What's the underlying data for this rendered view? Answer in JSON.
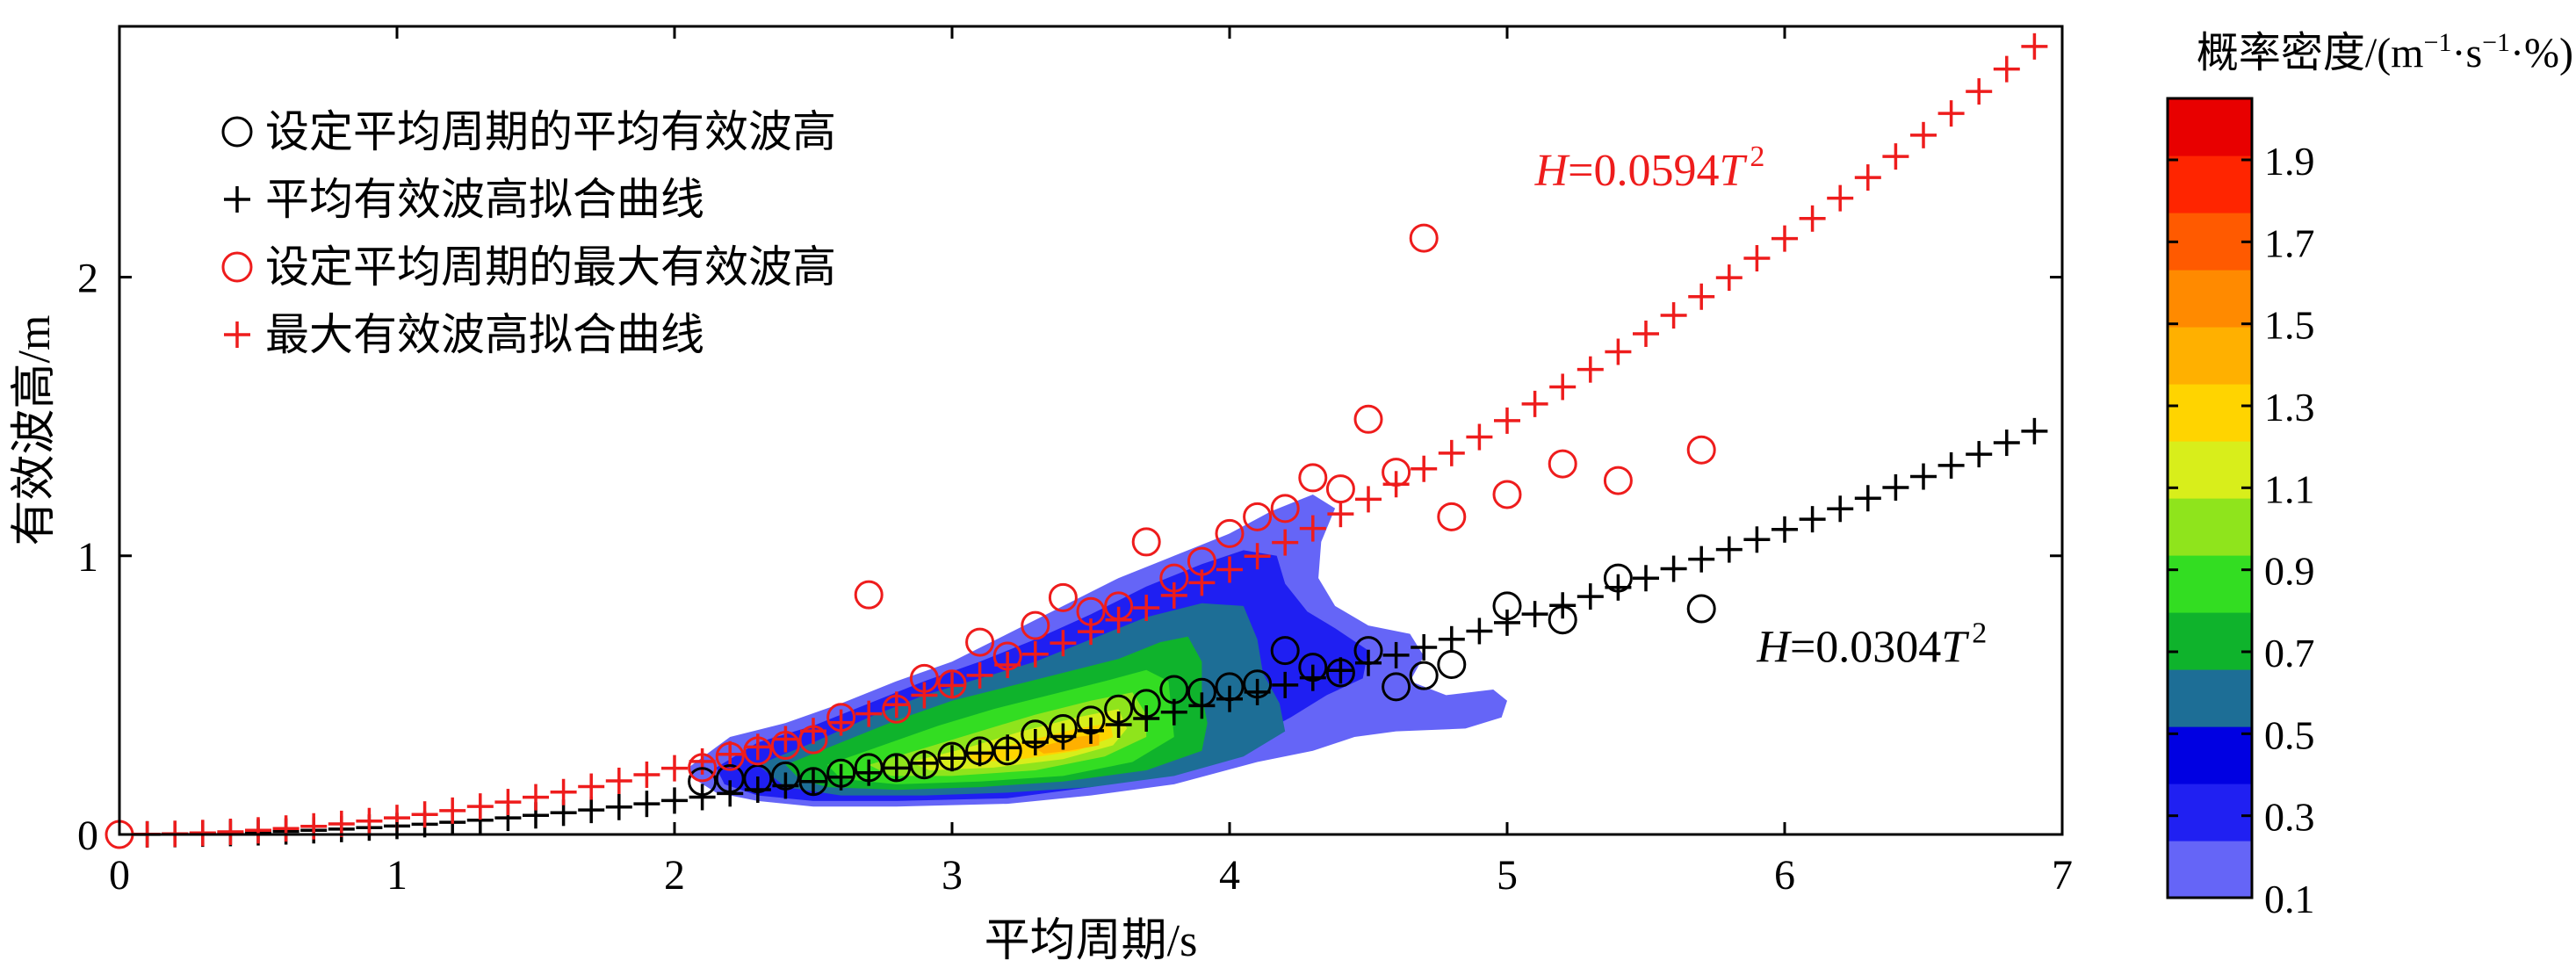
{
  "chart_data": {
    "type": "scatter",
    "xlabel": "平均周期/s",
    "ylabel": "有效波高/m",
    "xlim": [
      0,
      7
    ],
    "ylim": [
      0,
      2.9
    ],
    "x_ticks": [
      0,
      1,
      2,
      3,
      4,
      5,
      6,
      7
    ],
    "y_ticks": [
      0,
      1,
      2
    ],
    "legend": {
      "placement": "top-left",
      "items": [
        {
          "label": "设定平均周期的平均有效波高",
          "marker": "circle",
          "color": "#000000"
        },
        {
          "label": "平均有效波高拟合曲线",
          "marker": "plus",
          "color": "#000000"
        },
        {
          "label": "设定平均周期的最大有效波高",
          "marker": "circle",
          "color": "#ee1c1c"
        },
        {
          "label": "最大有效波高拟合曲线",
          "marker": "plus",
          "color": "#ee1c1c"
        }
      ]
    },
    "series": [
      {
        "kind": "circle",
        "color": "#000000",
        "points": [
          [
            2.1,
            0.19
          ],
          [
            2.2,
            0.2
          ],
          [
            2.3,
            0.2
          ],
          [
            2.4,
            0.21
          ],
          [
            2.5,
            0.19
          ],
          [
            2.6,
            0.22
          ],
          [
            2.7,
            0.24
          ],
          [
            2.8,
            0.24
          ],
          [
            2.9,
            0.25
          ],
          [
            3.0,
            0.28
          ],
          [
            3.1,
            0.3
          ],
          [
            3.2,
            0.3
          ],
          [
            3.3,
            0.36
          ],
          [
            3.4,
            0.38
          ],
          [
            3.5,
            0.41
          ],
          [
            3.6,
            0.45
          ],
          [
            3.7,
            0.47
          ],
          [
            3.8,
            0.52
          ],
          [
            3.9,
            0.51
          ],
          [
            4.0,
            0.53
          ],
          [
            4.1,
            0.54
          ],
          [
            4.2,
            0.66
          ],
          [
            4.3,
            0.6
          ],
          [
            4.4,
            0.58
          ],
          [
            4.5,
            0.66
          ],
          [
            4.6,
            0.53
          ],
          [
            4.7,
            0.57
          ],
          [
            4.8,
            0.61
          ],
          [
            5.0,
            0.82
          ],
          [
            5.2,
            0.77
          ],
          [
            5.4,
            0.92
          ],
          [
            5.7,
            0.81
          ]
        ]
      },
      {
        "kind": "plus-fit",
        "color": "#000000",
        "coefficient": 0.0304,
        "x_start": 0.1,
        "x_end": 6.9,
        "x_step": 0.1
      },
      {
        "kind": "circle",
        "color": "#ee1c1c",
        "points": [
          [
            0.0,
            0.0
          ],
          [
            2.1,
            0.24
          ],
          [
            2.2,
            0.28
          ],
          [
            2.3,
            0.3
          ],
          [
            2.4,
            0.32
          ],
          [
            2.5,
            0.34
          ],
          [
            2.6,
            0.42
          ],
          [
            2.7,
            0.86
          ],
          [
            2.8,
            0.45
          ],
          [
            2.9,
            0.56
          ],
          [
            3.0,
            0.54
          ],
          [
            3.1,
            0.69
          ],
          [
            3.2,
            0.64
          ],
          [
            3.3,
            0.75
          ],
          [
            3.4,
            0.85
          ],
          [
            3.5,
            0.8
          ],
          [
            3.6,
            0.82
          ],
          [
            3.7,
            1.05
          ],
          [
            3.8,
            0.92
          ],
          [
            3.9,
            0.98
          ],
          [
            4.0,
            1.08
          ],
          [
            4.1,
            1.14
          ],
          [
            4.2,
            1.17
          ],
          [
            4.3,
            1.28
          ],
          [
            4.4,
            1.24
          ],
          [
            4.5,
            1.49
          ],
          [
            4.6,
            1.3
          ],
          [
            4.7,
            2.14
          ],
          [
            4.8,
            1.14
          ],
          [
            5.0,
            1.22
          ],
          [
            5.2,
            1.33
          ],
          [
            5.4,
            1.27
          ],
          [
            5.7,
            1.38
          ]
        ]
      },
      {
        "kind": "plus-fit",
        "color": "#ee1c1c",
        "coefficient": 0.0594,
        "x_start": 0.1,
        "x_end": 6.9,
        "x_step": 0.1
      }
    ],
    "annotations": [
      {
        "pre": "H",
        "mid": "=0.0594",
        "post": "T",
        "sup": "2",
        "x": 5.1,
        "y": 2.33,
        "color": "#ee1c1c"
      },
      {
        "pre": "H",
        "mid": "=0.0304",
        "post": "T",
        "sup": "2",
        "x": 5.9,
        "y": 0.62,
        "color": "#000000"
      }
    ],
    "colorbar": {
      "title_pre": "概率密度/(m",
      "title_sup1": "−1",
      "title_mid": "·s",
      "title_sup2": "−1",
      "title_post": "·%)",
      "tick_labels": [
        "1.9",
        "1.7",
        "1.5",
        "1.3",
        "1.1",
        "0.9",
        "0.7",
        "0.5",
        "0.3",
        "0.1"
      ],
      "tick_values": [
        1.9,
        1.7,
        1.5,
        1.3,
        1.1,
        0.9,
        0.7,
        0.5,
        0.3,
        0.1
      ],
      "range": [
        0.1,
        2.05
      ],
      "colors": [
        "#6565f7",
        "#2020f2",
        "#0000e2",
        "#1d6e96",
        "#0fb32c",
        "#33dd22",
        "#8fe41c",
        "#d8ee1b",
        "#ffd400",
        "#ffb000",
        "#ff8a00",
        "#ff5a00",
        "#ff2500",
        "#e80000"
      ]
    },
    "density": {
      "levels": [
        {
          "value": 0.1,
          "color": "#6565f7",
          "points": [
            [
              2.05,
              0.24
            ],
            [
              2.2,
              0.35
            ],
            [
              2.4,
              0.4
            ],
            [
              2.6,
              0.47
            ],
            [
              2.8,
              0.55
            ],
            [
              3.0,
              0.62
            ],
            [
              3.2,
              0.72
            ],
            [
              3.4,
              0.82
            ],
            [
              3.6,
              0.92
            ],
            [
              3.8,
              1.0
            ],
            [
              4.0,
              1.08
            ],
            [
              4.15,
              1.16
            ],
            [
              4.3,
              1.22
            ],
            [
              4.38,
              1.17
            ],
            [
              4.33,
              1.05
            ],
            [
              4.32,
              0.92
            ],
            [
              4.38,
              0.82
            ],
            [
              4.5,
              0.75
            ],
            [
              4.65,
              0.72
            ],
            [
              4.7,
              0.64
            ],
            [
              4.65,
              0.55
            ],
            [
              4.78,
              0.5
            ],
            [
              4.95,
              0.52
            ],
            [
              5.0,
              0.48
            ],
            [
              4.98,
              0.42
            ],
            [
              4.85,
              0.38
            ],
            [
              4.6,
              0.37
            ],
            [
              4.45,
              0.35
            ],
            [
              4.3,
              0.3
            ],
            [
              4.1,
              0.26
            ],
            [
              3.8,
              0.18
            ],
            [
              3.5,
              0.14
            ],
            [
              3.2,
              0.11
            ],
            [
              2.8,
              0.1
            ],
            [
              2.5,
              0.1
            ],
            [
              2.3,
              0.12
            ],
            [
              2.15,
              0.15
            ],
            [
              2.07,
              0.2
            ]
          ]
        },
        {
          "value": 0.3,
          "color": "#1f1ff2",
          "points": [
            [
              2.15,
              0.24
            ],
            [
              2.3,
              0.33
            ],
            [
              2.5,
              0.39
            ],
            [
              2.7,
              0.47
            ],
            [
              2.9,
              0.55
            ],
            [
              3.1,
              0.62
            ],
            [
              3.3,
              0.7
            ],
            [
              3.5,
              0.79
            ],
            [
              3.7,
              0.89
            ],
            [
              3.9,
              0.97
            ],
            [
              4.05,
              1.02
            ],
            [
              4.17,
              1.0
            ],
            [
              4.2,
              0.9
            ],
            [
              4.28,
              0.8
            ],
            [
              4.38,
              0.74
            ],
            [
              4.5,
              0.66
            ],
            [
              4.48,
              0.56
            ],
            [
              4.35,
              0.5
            ],
            [
              4.22,
              0.42
            ],
            [
              4.05,
              0.33
            ],
            [
              3.8,
              0.22
            ],
            [
              3.5,
              0.17
            ],
            [
              3.2,
              0.13
            ],
            [
              2.8,
              0.12
            ],
            [
              2.5,
              0.12
            ],
            [
              2.3,
              0.14
            ],
            [
              2.18,
              0.18
            ]
          ]
        },
        {
          "value": 0.5,
          "color": "#1d6e96",
          "points": [
            [
              2.3,
              0.25
            ],
            [
              2.5,
              0.33
            ],
            [
              2.7,
              0.42
            ],
            [
              2.9,
              0.5
            ],
            [
              3.1,
              0.56
            ],
            [
              3.3,
              0.62
            ],
            [
              3.5,
              0.7
            ],
            [
              3.7,
              0.78
            ],
            [
              3.9,
              0.83
            ],
            [
              4.05,
              0.82
            ],
            [
              4.1,
              0.7
            ],
            [
              4.12,
              0.58
            ],
            [
              4.18,
              0.47
            ],
            [
              4.2,
              0.37
            ],
            [
              4.05,
              0.28
            ],
            [
              3.8,
              0.21
            ],
            [
              3.5,
              0.17
            ],
            [
              3.2,
              0.15
            ],
            [
              2.9,
              0.14
            ],
            [
              2.6,
              0.14
            ],
            [
              2.4,
              0.17
            ]
          ]
        },
        {
          "value": 0.7,
          "color": "#0fb32c",
          "points": [
            [
              2.4,
              0.25
            ],
            [
              2.6,
              0.33
            ],
            [
              2.8,
              0.41
            ],
            [
              3.0,
              0.48
            ],
            [
              3.2,
              0.53
            ],
            [
              3.4,
              0.58
            ],
            [
              3.6,
              0.63
            ],
            [
              3.75,
              0.69
            ],
            [
              3.85,
              0.71
            ],
            [
              3.9,
              0.62
            ],
            [
              3.9,
              0.5
            ],
            [
              3.92,
              0.4
            ],
            [
              3.9,
              0.3
            ],
            [
              3.7,
              0.23
            ],
            [
              3.4,
              0.19
            ],
            [
              3.1,
              0.17
            ],
            [
              2.8,
              0.16
            ],
            [
              2.55,
              0.17
            ],
            [
              2.45,
              0.2
            ]
          ]
        },
        {
          "value": 0.9,
          "color": "#33dd22",
          "points": [
            [
              2.55,
              0.25
            ],
            [
              2.75,
              0.32
            ],
            [
              2.95,
              0.39
            ],
            [
              3.15,
              0.45
            ],
            [
              3.35,
              0.5
            ],
            [
              3.55,
              0.55
            ],
            [
              3.7,
              0.59
            ],
            [
              3.78,
              0.55
            ],
            [
              3.79,
              0.45
            ],
            [
              3.8,
              0.35
            ],
            [
              3.65,
              0.26
            ],
            [
              3.4,
              0.21
            ],
            [
              3.1,
              0.19
            ],
            [
              2.8,
              0.18
            ],
            [
              2.6,
              0.2
            ]
          ]
        },
        {
          "value": 1.1,
          "color": "#8fe41c",
          "points": [
            [
              2.7,
              0.25
            ],
            [
              2.9,
              0.31
            ],
            [
              3.1,
              0.37
            ],
            [
              3.3,
              0.43
            ],
            [
              3.5,
              0.48
            ],
            [
              3.65,
              0.51
            ],
            [
              3.7,
              0.43
            ],
            [
              3.7,
              0.35
            ],
            [
              3.55,
              0.28
            ],
            [
              3.3,
              0.23
            ],
            [
              3.0,
              0.21
            ],
            [
              2.78,
              0.21
            ]
          ]
        },
        {
          "value": 1.3,
          "color": "#d8ee1b",
          "points": [
            [
              2.85,
              0.26
            ],
            [
              3.05,
              0.31
            ],
            [
              3.25,
              0.37
            ],
            [
              3.45,
              0.42
            ],
            [
              3.6,
              0.45
            ],
            [
              3.63,
              0.38
            ],
            [
              3.58,
              0.32
            ],
            [
              3.4,
              0.27
            ],
            [
              3.15,
              0.24
            ],
            [
              2.92,
              0.23
            ]
          ]
        },
        {
          "value": 1.5,
          "color": "#ffd400",
          "points": [
            [
              3.05,
              0.28
            ],
            [
              3.25,
              0.33
            ],
            [
              3.45,
              0.38
            ],
            [
              3.57,
              0.4
            ],
            [
              3.58,
              0.35
            ],
            [
              3.45,
              0.3
            ],
            [
              3.25,
              0.27
            ],
            [
              3.1,
              0.26
            ]
          ]
        },
        {
          "value": 1.7,
          "color": "#ffb000",
          "points": [
            [
              3.3,
              0.31
            ],
            [
              3.45,
              0.35
            ],
            [
              3.53,
              0.36
            ],
            [
              3.53,
              0.32
            ],
            [
              3.42,
              0.3
            ],
            [
              3.33,
              0.29
            ]
          ]
        }
      ]
    }
  }
}
